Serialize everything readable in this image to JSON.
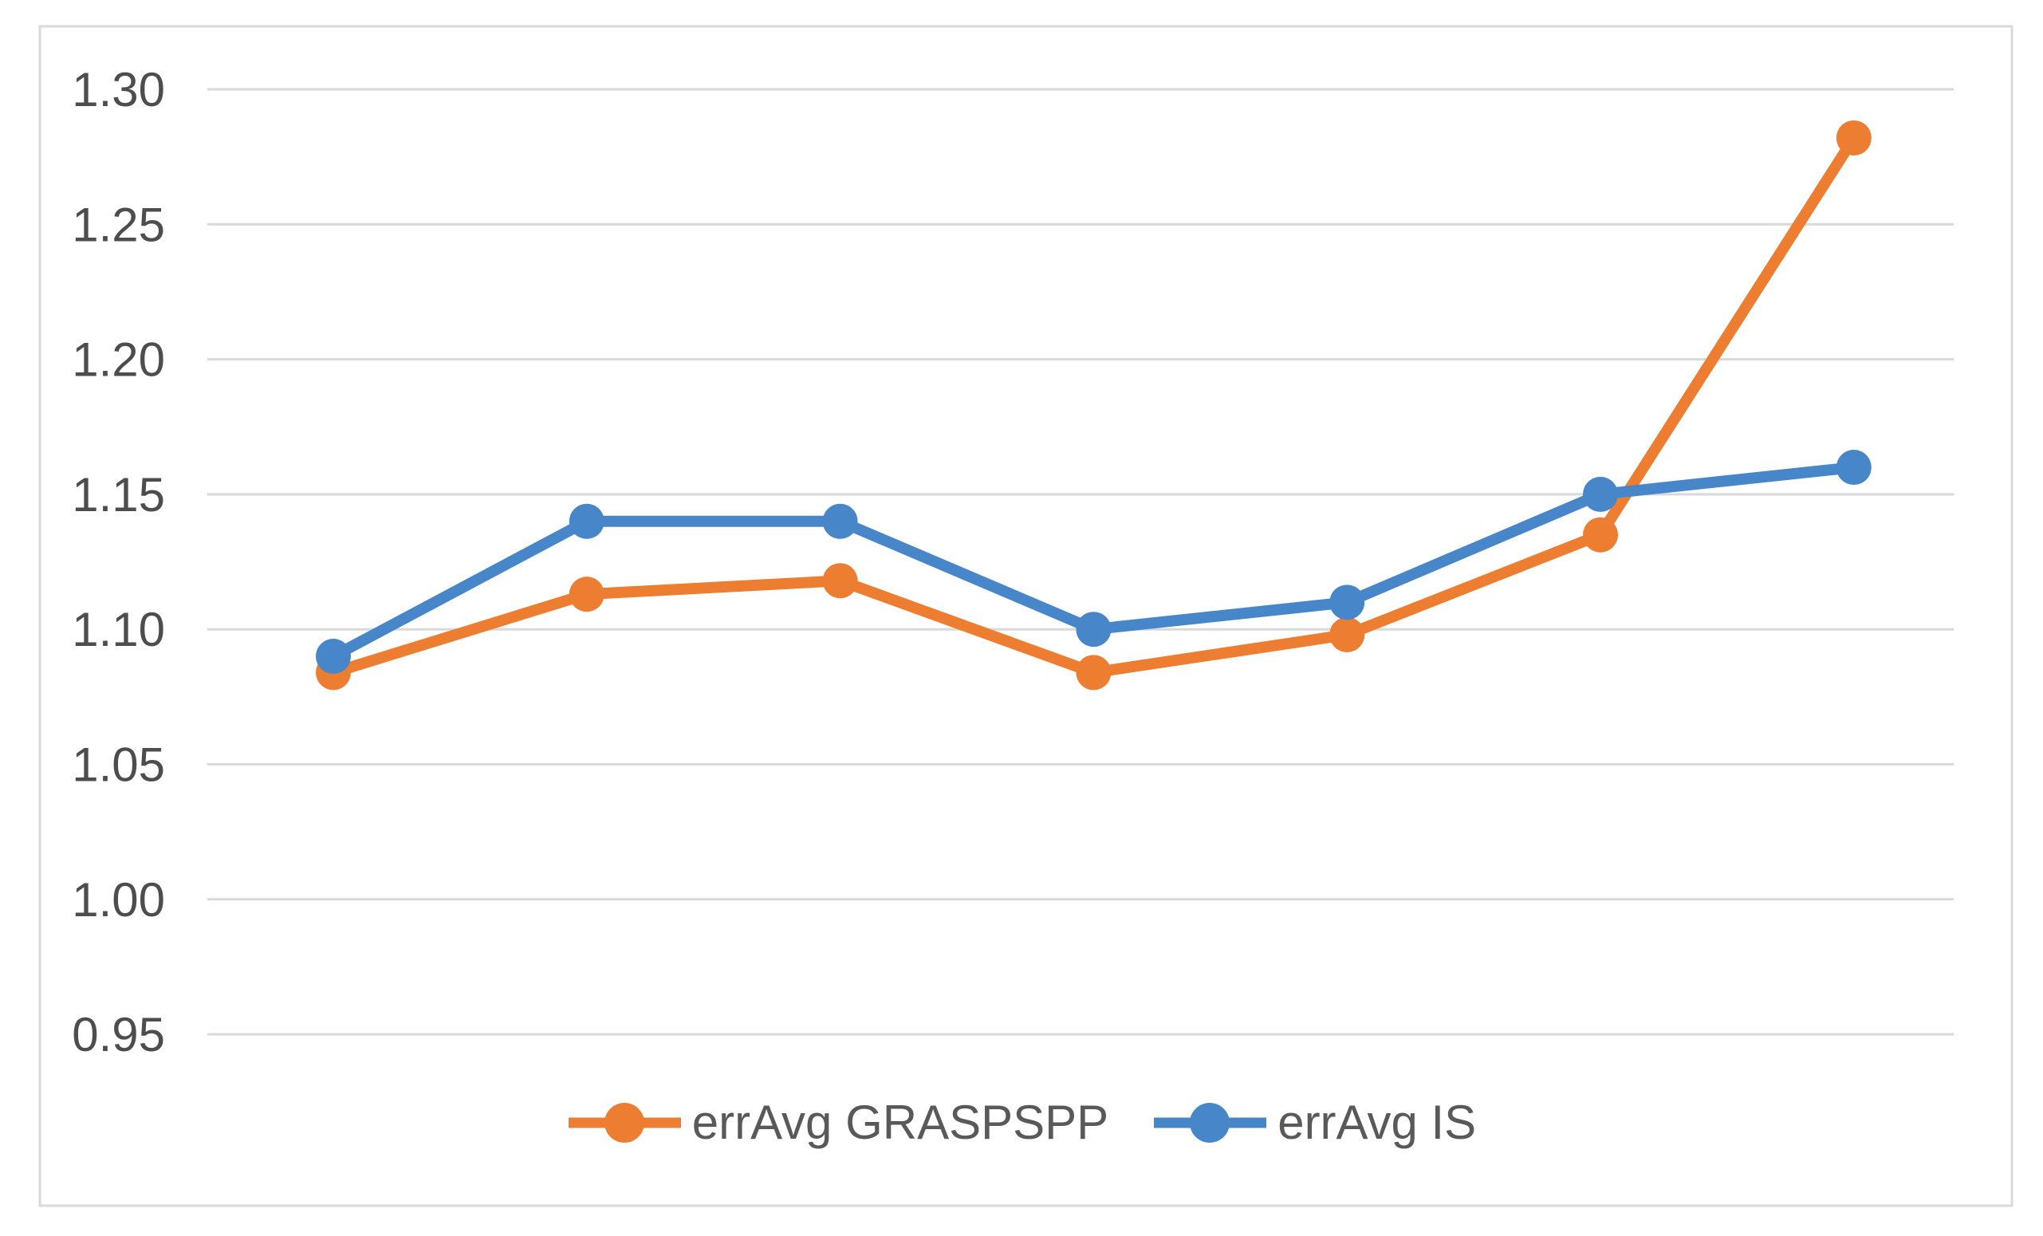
{
  "figure": {
    "background_color": "#ffffff",
    "border_color": "#d9d9d9",
    "gridline_color": "#d9d9d9",
    "tick_label_color": "#4d4d4d",
    "legend_text_color": "#595959"
  },
  "chart_data": {
    "type": "line",
    "title": "",
    "xlabel": "",
    "ylabel": "",
    "grid": "horizontal",
    "legend_position": "bottom-center",
    "x_axis_labels_visible": false,
    "num_points": 7,
    "ylim": [
      0.95,
      1.3
    ],
    "y_tick_labels": [
      "1.30",
      "1.25",
      "1.20",
      "1.15",
      "1.10",
      "1.05",
      "1.00",
      "0.95"
    ],
    "y_tick_values": [
      1.3,
      1.25,
      1.2,
      1.15,
      1.1,
      1.05,
      1.0,
      0.95
    ],
    "series": [
      {
        "name": "errAvg GRASPSPP",
        "color": "#ed7d31",
        "marker": "circle",
        "values": [
          1.084,
          1.113,
          1.118,
          1.084,
          1.098,
          1.135,
          1.282
        ]
      },
      {
        "name": "errAvg IS",
        "color": "#4787c9",
        "marker": "circle",
        "values": [
          1.09,
          1.14,
          1.14,
          1.1,
          1.11,
          1.15,
          1.16
        ]
      }
    ]
  }
}
